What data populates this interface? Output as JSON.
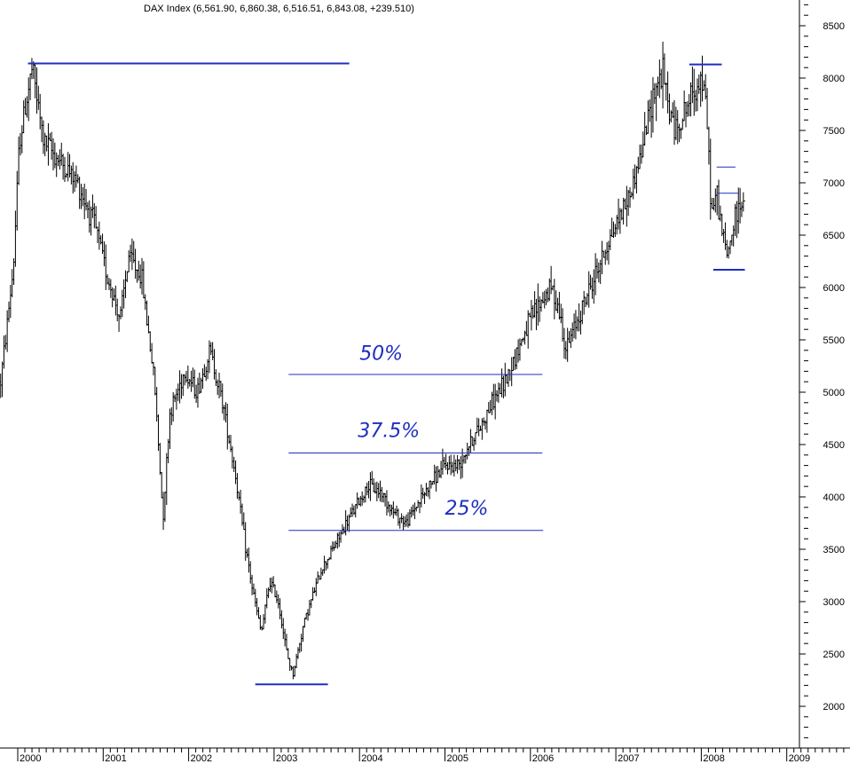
{
  "chart_data": {
    "type": "bar",
    "subtype": "ohlc",
    "title": "DAX Index (6,561.90, 6,860.38, 6,516.51, 6,843.08, +239.510)",
    "xlabel": "",
    "ylabel": "",
    "x_tick_labels": [
      "2000",
      "2001",
      "2002",
      "2003",
      "2004",
      "2005",
      "2006",
      "2007",
      "2008",
      "2009"
    ],
    "y_ticks": [
      2000,
      2500,
      3000,
      3500,
      4000,
      4500,
      5000,
      5500,
      6000,
      6500,
      7000,
      7500,
      8000,
      8500
    ],
    "ylim": [
      1650,
      8700
    ],
    "xlim": [
      1999.82,
      2009.1
    ],
    "grid": false,
    "series_color": "#000000",
    "annotation_color": "#1f2fbf",
    "price_anchors": [
      [
        1999.8,
        5100
      ],
      [
        1999.95,
        6200
      ],
      [
        2000.02,
        7400
      ],
      [
        2000.17,
        8100
      ],
      [
        2000.3,
        7400
      ],
      [
        2000.5,
        7200
      ],
      [
        2000.7,
        7000
      ],
      [
        2000.9,
        6600
      ],
      [
        2001.05,
        6100
      ],
      [
        2001.2,
        5700
      ],
      [
        2001.3,
        6300
      ],
      [
        2001.45,
        6100
      ],
      [
        2001.6,
        5100
      ],
      [
        2001.7,
        3800
      ],
      [
        2001.78,
        4800
      ],
      [
        2001.95,
        5200
      ],
      [
        2002.1,
        5000
      ],
      [
        2002.25,
        5400
      ],
      [
        2002.4,
        4900
      ],
      [
        2002.55,
        4200
      ],
      [
        2002.65,
        3600
      ],
      [
        2002.75,
        3100
      ],
      [
        2002.85,
        2700
      ],
      [
        2002.95,
        3200
      ],
      [
        2003.05,
        3000
      ],
      [
        2003.15,
        2500
      ],
      [
        2003.22,
        2300
      ],
      [
        2003.35,
        2800
      ],
      [
        2003.55,
        3300
      ],
      [
        2003.75,
        3600
      ],
      [
        2003.95,
        3900
      ],
      [
        2004.1,
        4100
      ],
      [
        2004.25,
        4050
      ],
      [
        2004.4,
        3850
      ],
      [
        2004.55,
        3750
      ],
      [
        2004.65,
        3900
      ],
      [
        2004.85,
        4150
      ],
      [
        2005.0,
        4300
      ],
      [
        2005.15,
        4300
      ],
      [
        2005.28,
        4500
      ],
      [
        2005.4,
        4650
      ],
      [
        2005.55,
        4900
      ],
      [
        2005.7,
        5100
      ],
      [
        2005.85,
        5400
      ],
      [
        2006.0,
        5700
      ],
      [
        2006.15,
        5900
      ],
      [
        2006.25,
        6000
      ],
      [
        2006.33,
        5800
      ],
      [
        2006.42,
        5400
      ],
      [
        2006.55,
        5700
      ],
      [
        2006.75,
        6100
      ],
      [
        2006.92,
        6450
      ],
      [
        2007.05,
        6700
      ],
      [
        2007.17,
        6900
      ],
      [
        2007.3,
        7300
      ],
      [
        2007.45,
        7900
      ],
      [
        2007.55,
        8050
      ],
      [
        2007.62,
        7700
      ],
      [
        2007.7,
        7500
      ],
      [
        2007.82,
        7700
      ],
      [
        2007.92,
        7900
      ],
      [
        2008.0,
        8000
      ],
      [
        2008.06,
        7700
      ],
      [
        2008.12,
        6700
      ],
      [
        2008.18,
        6900
      ],
      [
        2008.25,
        6500
      ],
      [
        2008.3,
        6300
      ],
      [
        2008.38,
        6600
      ],
      [
        2008.45,
        6800
      ],
      [
        2008.5,
        6843
      ]
    ],
    "horizontal_lines": [
      {
        "y": 8140,
        "x_start": 2000.12,
        "x_end": 2003.88,
        "style": "thick"
      },
      {
        "y": 2210,
        "x_start": 2002.78,
        "x_end": 2003.63,
        "style": "thick"
      },
      {
        "y": 8130,
        "x_start": 2007.86,
        "x_end": 2008.24,
        "style": "thick"
      },
      {
        "y": 6170,
        "x_start": 2008.14,
        "x_end": 2008.51,
        "style": "thick"
      },
      {
        "y": 7150,
        "x_start": 2008.18,
        "x_end": 2008.4,
        "style": "thin"
      },
      {
        "y": 6900,
        "x_start": 2008.18,
        "x_end": 2008.44,
        "style": "thin"
      },
      {
        "y": 5170,
        "x_start": 2003.17,
        "x_end": 2006.14,
        "style": "thin"
      },
      {
        "y": 4420,
        "x_start": 2003.17,
        "x_end": 2006.14,
        "style": "thin"
      },
      {
        "y": 3680,
        "x_start": 2003.17,
        "x_end": 2006.15,
        "style": "thin"
      }
    ],
    "annotations": [
      {
        "text": "50%",
        "x": 2004.0,
        "y": 5310
      },
      {
        "text": "37.5%",
        "x": 2003.98,
        "y": 4570
      },
      {
        "text": "25%",
        "x": 2005.0,
        "y": 3830
      }
    ]
  }
}
